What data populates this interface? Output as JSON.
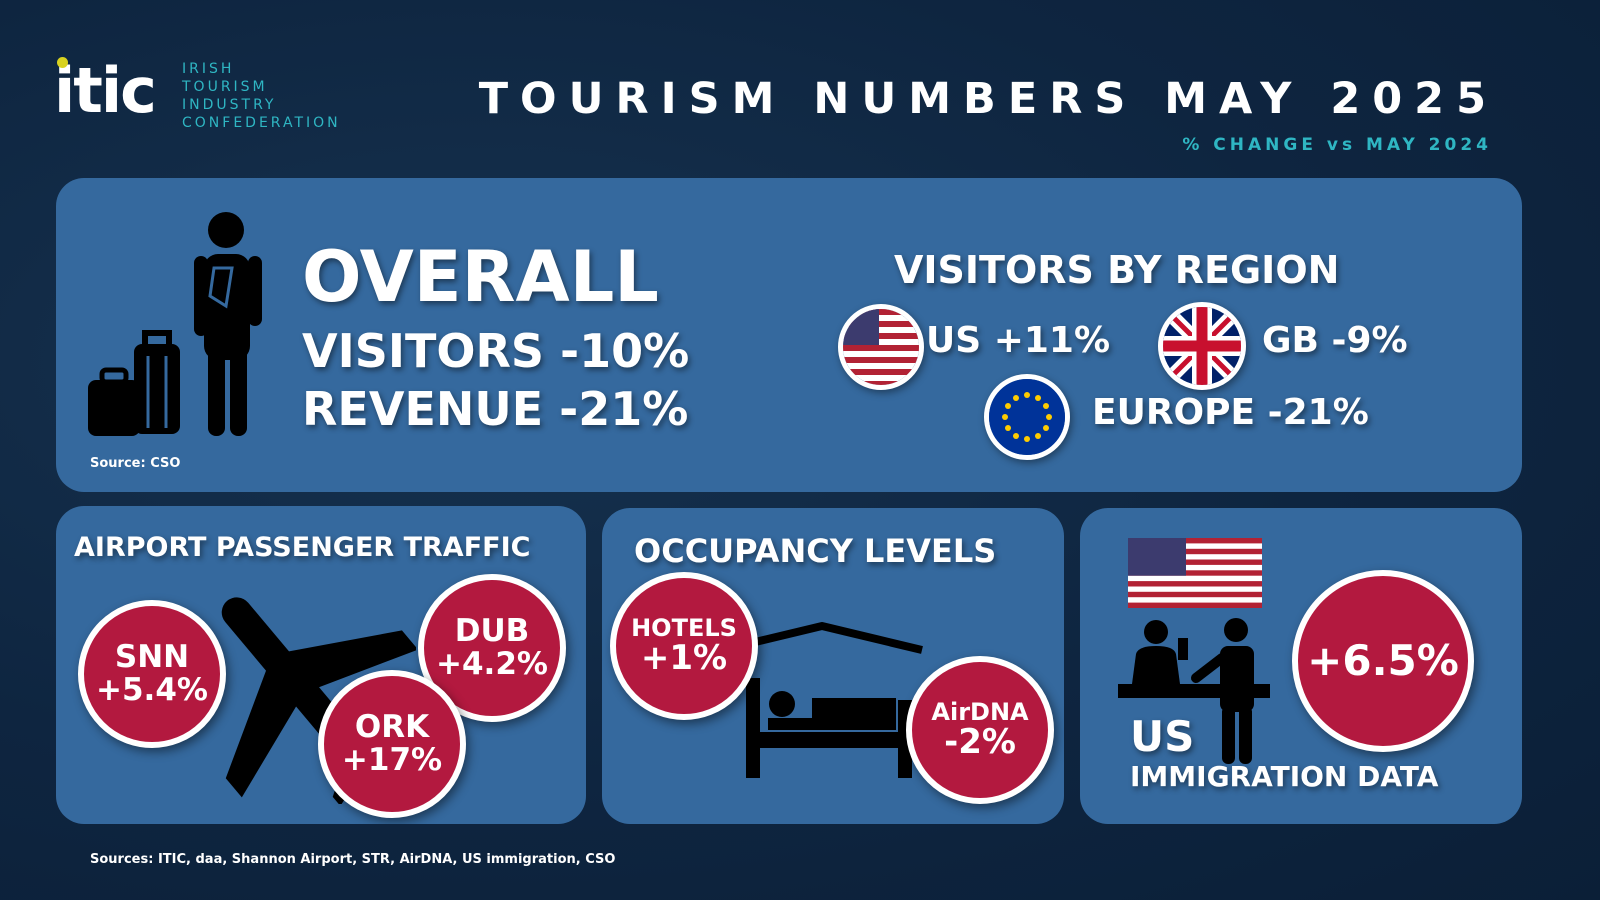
{
  "header": {
    "logo_text": "itic",
    "org_name_lines": [
      "IRISH",
      "TOURISM",
      "INDUSTRY",
      "CONFEDERATION"
    ],
    "title": "TOURISM NUMBERS MAY 2025",
    "subtitle": "% CHANGE vs MAY 2024"
  },
  "overall": {
    "heading": "OVERALL",
    "visitors": "VISITORS -10%",
    "revenue": "REVENUE -21%",
    "source": "Source: CSO"
  },
  "regions": {
    "heading": "VISITORS BY REGION",
    "items": [
      {
        "flag": "us-flag-icon",
        "label": "US +11%"
      },
      {
        "flag": "uk-flag-icon",
        "label": "GB -9%"
      },
      {
        "flag": "eu-flag-icon",
        "label": "EUROPE -21%"
      }
    ]
  },
  "airport": {
    "heading": "AIRPORT PASSENGER TRAFFIC",
    "snn": {
      "code": "SNN",
      "value": "+5.4%"
    },
    "dub": {
      "code": "DUB",
      "value": "+4.2%"
    },
    "ork": {
      "code": "ORK",
      "value": "+17%"
    }
  },
  "occupancy": {
    "heading": "OCCUPANCY LEVELS",
    "hotels": {
      "label": "HOTELS",
      "value": "+1%"
    },
    "airdna": {
      "label": "AirDNA",
      "value": "-2%"
    }
  },
  "immigration": {
    "value": "+6.5%",
    "label_top": "US",
    "label_bottom": "IMMIGRATION DATA"
  },
  "footer": {
    "sources": "Sources: ITIC, daa, Shannon Airport, STR, AirDNA, US immigration, CSO"
  },
  "colors": {
    "background": "#0e2540",
    "panel": "#35699e",
    "accent_teal": "#2fb6c3",
    "circle_red": "#b3193f",
    "logo_dot": "#d8d21f"
  }
}
